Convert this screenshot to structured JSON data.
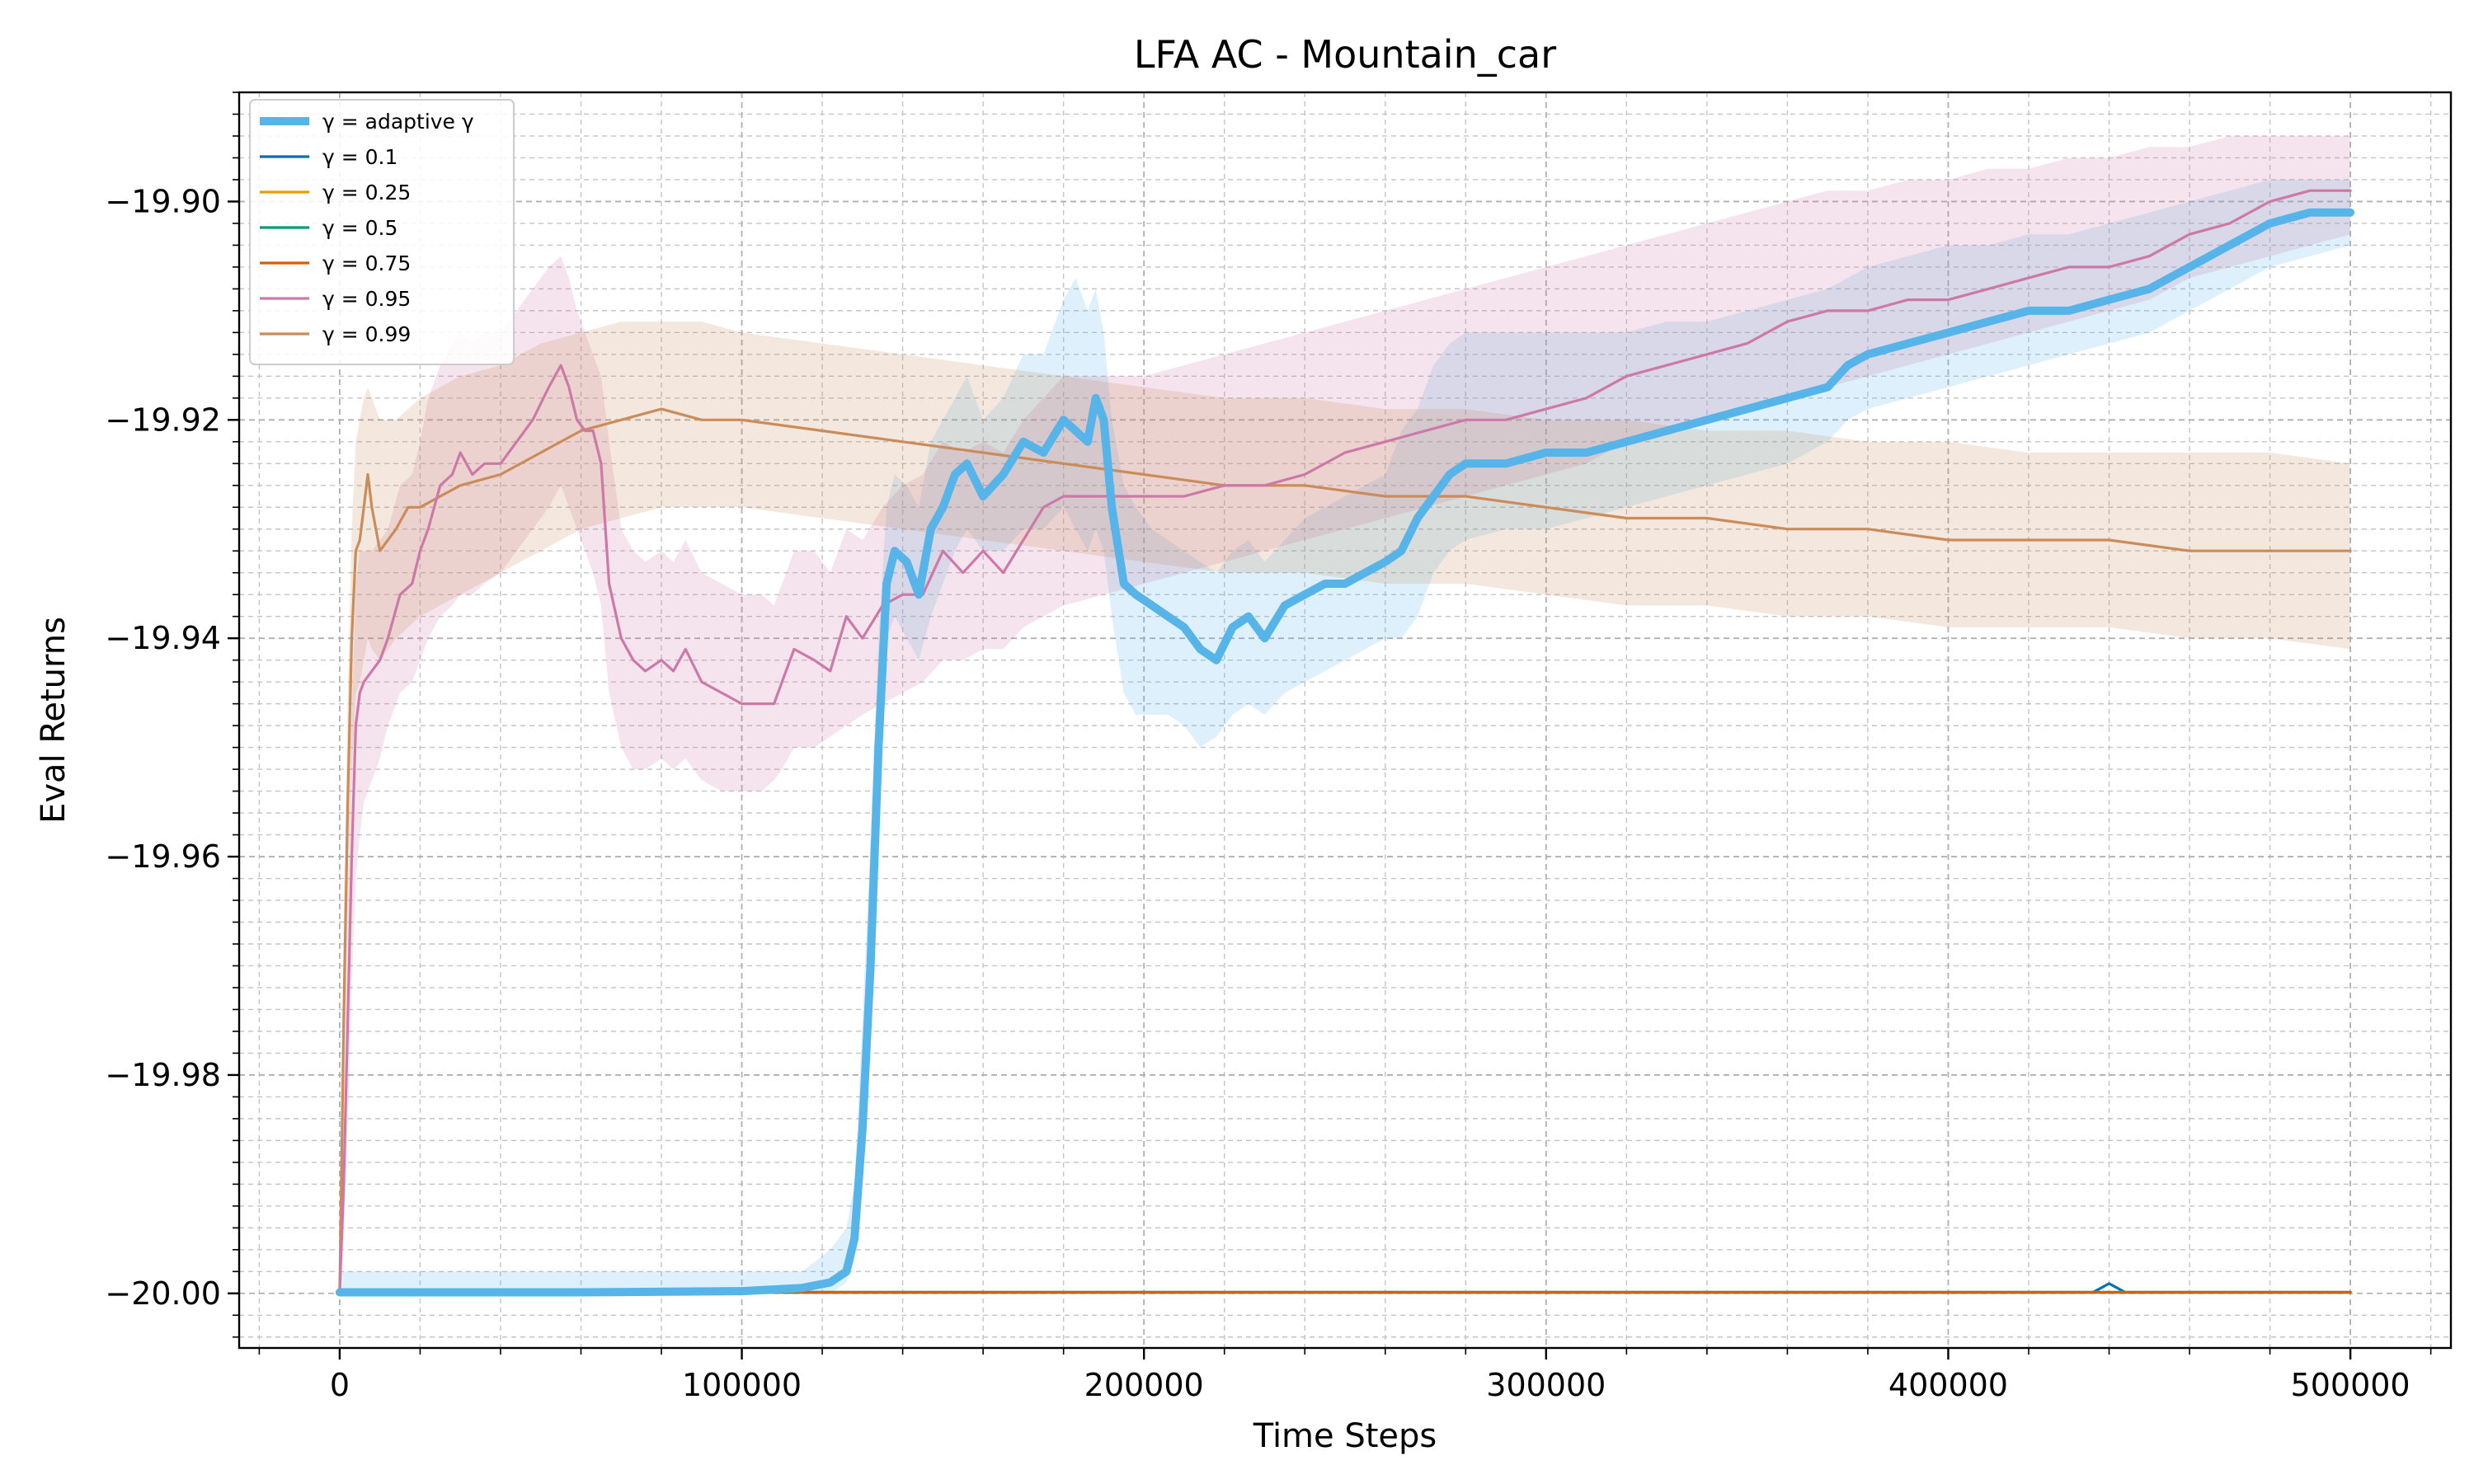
{
  "chart_data": {
    "type": "line",
    "title": "LFA AC - Mountain_car",
    "xlabel": "Time Steps",
    "ylabel": "Eval Returns",
    "xlim": [
      -25000,
      525000
    ],
    "ylim": [
      -20.005,
      -19.89
    ],
    "xticks": [
      0,
      100000,
      200000,
      300000,
      400000,
      500000
    ],
    "xtick_labels": [
      "0",
      "100000",
      "200000",
      "300000",
      "400000",
      "500000"
    ],
    "yticks": [
      -20.0,
      -19.98,
      -19.96,
      -19.94,
      -19.92,
      -19.9
    ],
    "ytick_labels": [
      "−20.00",
      "−19.98",
      "−19.96",
      "−19.94",
      "−19.92",
      "−19.90"
    ],
    "grid": true,
    "legend_position": "top-left",
    "series": [
      {
        "name": "γ = adaptive γ",
        "color": "#56b4e9",
        "linewidth": "thick",
        "x": [
          0,
          20000,
          60000,
          100000,
          115000,
          122000,
          126000,
          128000,
          130000,
          132000,
          134000,
          136000,
          138000,
          141000,
          144000,
          147000,
          150000,
          153000,
          156000,
          160000,
          165000,
          170000,
          175000,
          180000,
          183000,
          186000,
          188000,
          190000,
          192000,
          195000,
          198000,
          202000,
          206000,
          210000,
          214000,
          218000,
          222000,
          226000,
          230000,
          235000,
          240000,
          245000,
          250000,
          255000,
          260000,
          264000,
          268000,
          272000,
          276000,
          280000,
          290000,
          300000,
          310000,
          320000,
          330000,
          340000,
          350000,
          360000,
          370000,
          375000,
          380000,
          390000,
          400000,
          410000,
          420000,
          430000,
          440000,
          450000,
          460000,
          470000,
          480000,
          490000,
          500000
        ],
        "y": [
          -19.9999,
          -19.9999,
          -19.9999,
          -19.9998,
          -19.9995,
          -19.999,
          -19.998,
          -19.995,
          -19.985,
          -19.97,
          -19.95,
          -19.935,
          -19.932,
          -19.933,
          -19.936,
          -19.93,
          -19.928,
          -19.925,
          -19.924,
          -19.927,
          -19.925,
          -19.922,
          -19.923,
          -19.92,
          -19.921,
          -19.922,
          -19.918,
          -19.92,
          -19.928,
          -19.935,
          -19.936,
          -19.937,
          -19.938,
          -19.939,
          -19.941,
          -19.942,
          -19.939,
          -19.938,
          -19.94,
          -19.937,
          -19.936,
          -19.935,
          -19.935,
          -19.934,
          -19.933,
          -19.932,
          -19.929,
          -19.927,
          -19.925,
          -19.924,
          -19.924,
          -19.923,
          -19.923,
          -19.922,
          -19.921,
          -19.92,
          -19.919,
          -19.918,
          -19.917,
          -19.915,
          -19.914,
          -19.913,
          -19.912,
          -19.911,
          -19.91,
          -19.91,
          -19.909,
          -19.908,
          -19.906,
          -19.904,
          -19.902,
          -19.901,
          -19.901
        ],
        "band_lower": [
          -20.0,
          -20.0,
          -20.0,
          -20.0,
          -20.0,
          -20.0,
          -19.999,
          -19.997,
          -19.99,
          -19.975,
          -19.955,
          -19.94,
          -19.938,
          -19.94,
          -19.942,
          -19.938,
          -19.935,
          -19.932,
          -19.93,
          -19.932,
          -19.932,
          -19.93,
          -19.93,
          -19.928,
          -19.93,
          -19.932,
          -19.93,
          -19.932,
          -19.938,
          -19.945,
          -19.947,
          -19.947,
          -19.947,
          -19.948,
          -19.95,
          -19.949,
          -19.947,
          -19.946,
          -19.947,
          -19.945,
          -19.944,
          -19.943,
          -19.942,
          -19.941,
          -19.94,
          -19.94,
          -19.938,
          -19.934,
          -19.932,
          -19.931,
          -19.93,
          -19.93,
          -19.929,
          -19.928,
          -19.927,
          -19.926,
          -19.925,
          -19.924,
          -19.922,
          -19.92,
          -19.919,
          -19.918,
          -19.917,
          -19.916,
          -19.915,
          -19.914,
          -19.913,
          -19.912,
          -19.91,
          -19.908,
          -19.906,
          -19.905,
          -19.904
        ],
        "band_upper": [
          -19.998,
          -19.998,
          -19.998,
          -19.998,
          -19.998,
          -19.996,
          -19.994,
          -19.99,
          -19.975,
          -19.958,
          -19.94,
          -19.928,
          -19.925,
          -19.926,
          -19.928,
          -19.922,
          -19.92,
          -19.918,
          -19.916,
          -19.92,
          -19.918,
          -19.914,
          -19.914,
          -19.909,
          -19.907,
          -19.91,
          -19.908,
          -19.912,
          -19.92,
          -19.926,
          -19.928,
          -19.93,
          -19.931,
          -19.932,
          -19.933,
          -19.934,
          -19.932,
          -19.931,
          -19.933,
          -19.931,
          -19.929,
          -19.928,
          -19.927,
          -19.926,
          -19.925,
          -19.921,
          -19.919,
          -19.915,
          -19.913,
          -19.912,
          -19.912,
          -19.912,
          -19.912,
          -19.912,
          -19.911,
          -19.911,
          -19.91,
          -19.909,
          -19.908,
          -19.907,
          -19.906,
          -19.905,
          -19.904,
          -19.904,
          -19.903,
          -19.903,
          -19.902,
          -19.901,
          -19.9,
          -19.899,
          -19.898,
          -19.898,
          -19.898
        ]
      },
      {
        "name": "γ = 0.1",
        "color": "#0072b2",
        "x": [
          0,
          100000,
          200000,
          300000,
          400000,
          436000,
          438000,
          440000,
          442000,
          444000,
          500000
        ],
        "y": [
          -19.9999,
          -19.9999,
          -19.9999,
          -19.9999,
          -19.9999,
          -19.9999,
          -19.9995,
          -19.9991,
          -19.9995,
          -19.9999,
          -19.9999
        ]
      },
      {
        "name": "γ = 0.25",
        "color": "#e69f00",
        "x": [
          0,
          500000
        ],
        "y": [
          -19.9999,
          -19.9999
        ]
      },
      {
        "name": "γ = 0.5",
        "color": "#009e73",
        "x": [
          0,
          500000
        ],
        "y": [
          -19.9999,
          -19.9999
        ]
      },
      {
        "name": "γ = 0.75",
        "color": "#d55e00",
        "x": [
          0,
          500000
        ],
        "y": [
          -19.9999,
          -19.9999
        ]
      },
      {
        "name": "γ = 0.95",
        "color": "#cc79a7",
        "x": [
          0,
          1000,
          2000,
          3000,
          4000,
          5000,
          6000,
          8000,
          10000,
          12000,
          15000,
          18000,
          20000,
          22000,
          25000,
          28000,
          30000,
          33000,
          36000,
          40000,
          44000,
          48000,
          52000,
          55000,
          57000,
          59000,
          61000,
          63000,
          65000,
          67000,
          70000,
          73000,
          76000,
          80000,
          83000,
          86000,
          90000,
          95000,
          100000,
          105000,
          108000,
          110000,
          113000,
          118000,
          122000,
          126000,
          130000,
          135000,
          140000,
          145000,
          150000,
          155000,
          160000,
          165000,
          170000,
          175000,
          180000,
          190000,
          200000,
          210000,
          220000,
          230000,
          240000,
          250000,
          260000,
          270000,
          280000,
          290000,
          300000,
          310000,
          320000,
          330000,
          340000,
          350000,
          360000,
          370000,
          380000,
          390000,
          400000,
          410000,
          420000,
          430000,
          440000,
          450000,
          460000,
          470000,
          480000,
          490000,
          500000
        ],
        "y": [
          -19.9999,
          -19.99,
          -19.975,
          -19.96,
          -19.948,
          -19.945,
          -19.944,
          -19.943,
          -19.942,
          -19.94,
          -19.936,
          -19.935,
          -19.932,
          -19.93,
          -19.926,
          -19.925,
          -19.923,
          -19.925,
          -19.924,
          -19.924,
          -19.922,
          -19.92,
          -19.917,
          -19.915,
          -19.917,
          -19.92,
          -19.921,
          -19.921,
          -19.924,
          -19.935,
          -19.94,
          -19.942,
          -19.943,
          -19.942,
          -19.943,
          -19.941,
          -19.944,
          -19.945,
          -19.946,
          -19.946,
          -19.946,
          -19.944,
          -19.941,
          -19.942,
          -19.943,
          -19.938,
          -19.94,
          -19.937,
          -19.936,
          -19.936,
          -19.932,
          -19.934,
          -19.932,
          -19.934,
          -19.931,
          -19.928,
          -19.927,
          -19.927,
          -19.927,
          -19.927,
          -19.926,
          -19.926,
          -19.925,
          -19.923,
          -19.922,
          -19.921,
          -19.92,
          -19.92,
          -19.919,
          -19.918,
          -19.916,
          -19.915,
          -19.914,
          -19.913,
          -19.911,
          -19.91,
          -19.91,
          -19.909,
          -19.909,
          -19.908,
          -19.907,
          -19.906,
          -19.906,
          -19.905,
          -19.903,
          -19.902,
          -19.9,
          -19.899,
          -19.899
        ],
        "band_lower": [
          -20.0,
          -19.995,
          -19.985,
          -19.972,
          -19.962,
          -19.958,
          -19.955,
          -19.953,
          -19.951,
          -19.948,
          -19.945,
          -19.944,
          -19.942,
          -19.94,
          -19.938,
          -19.937,
          -19.936,
          -19.936,
          -19.935,
          -19.934,
          -19.932,
          -19.93,
          -19.928,
          -19.926,
          -19.928,
          -19.93,
          -19.932,
          -19.934,
          -19.937,
          -19.945,
          -19.95,
          -19.952,
          -19.952,
          -19.951,
          -19.952,
          -19.951,
          -19.953,
          -19.954,
          -19.954,
          -19.954,
          -19.953,
          -19.952,
          -19.95,
          -19.95,
          -19.949,
          -19.948,
          -19.947,
          -19.946,
          -19.945,
          -19.944,
          -19.942,
          -19.942,
          -19.941,
          -19.941,
          -19.939,
          -19.938,
          -19.937,
          -19.936,
          -19.935,
          -19.934,
          -19.933,
          -19.932,
          -19.931,
          -19.93,
          -19.929,
          -19.928,
          -19.927,
          -19.926,
          -19.925,
          -19.924,
          -19.922,
          -19.921,
          -19.92,
          -19.919,
          -19.918,
          -19.917,
          -19.916,
          -19.915,
          -19.914,
          -19.913,
          -19.912,
          -19.911,
          -19.91,
          -19.909,
          -19.907,
          -19.906,
          -19.905,
          -19.904,
          -19.903
        ],
        "band_upper": [
          -19.998,
          -19.985,
          -19.965,
          -19.948,
          -19.935,
          -19.932,
          -19.932,
          -19.932,
          -19.931,
          -19.93,
          -19.926,
          -19.925,
          -19.922,
          -19.918,
          -19.915,
          -19.913,
          -19.912,
          -19.913,
          -19.912,
          -19.912,
          -19.91,
          -19.908,
          -19.906,
          -19.905,
          -19.907,
          -19.91,
          -19.912,
          -19.914,
          -19.916,
          -19.922,
          -19.93,
          -19.932,
          -19.933,
          -19.932,
          -19.933,
          -19.931,
          -19.934,
          -19.935,
          -19.936,
          -19.936,
          -19.937,
          -19.935,
          -19.932,
          -19.932,
          -19.934,
          -19.93,
          -19.931,
          -19.928,
          -19.926,
          -19.925,
          -19.922,
          -19.923,
          -19.922,
          -19.923,
          -19.92,
          -19.918,
          -19.916,
          -19.916,
          -19.916,
          -19.915,
          -19.914,
          -19.913,
          -19.912,
          -19.911,
          -19.91,
          -19.909,
          -19.908,
          -19.907,
          -19.906,
          -19.905,
          -19.904,
          -19.903,
          -19.902,
          -19.901,
          -19.9,
          -19.899,
          -19.899,
          -19.898,
          -19.898,
          -19.897,
          -19.897,
          -19.896,
          -19.896,
          -19.895,
          -19.895,
          -19.894,
          -19.894,
          -19.894,
          -19.894
        ]
      },
      {
        "name": "γ = 0.99",
        "color": "#c98c5a",
        "x": [
          0,
          1000,
          2000,
          3000,
          4000,
          5000,
          6000,
          7000,
          8000,
          10000,
          12000,
          14000,
          17000,
          20000,
          25000,
          30000,
          40000,
          50000,
          60000,
          70000,
          80000,
          90000,
          100000,
          120000,
          140000,
          160000,
          180000,
          200000,
          220000,
          240000,
          260000,
          280000,
          300000,
          320000,
          340000,
          360000,
          380000,
          400000,
          420000,
          440000,
          460000,
          480000,
          500000
        ],
        "y": [
          -19.9999,
          -19.975,
          -19.955,
          -19.94,
          -19.932,
          -19.931,
          -19.928,
          -19.925,
          -19.928,
          -19.932,
          -19.931,
          -19.93,
          -19.928,
          -19.928,
          -19.927,
          -19.926,
          -19.925,
          -19.923,
          -19.921,
          -19.92,
          -19.919,
          -19.92,
          -19.92,
          -19.921,
          -19.922,
          -19.923,
          -19.924,
          -19.925,
          -19.926,
          -19.926,
          -19.927,
          -19.927,
          -19.928,
          -19.929,
          -19.929,
          -19.93,
          -19.93,
          -19.931,
          -19.931,
          -19.931,
          -19.932,
          -19.932,
          -19.932
        ],
        "band_lower": [
          -20.0,
          -19.985,
          -19.965,
          -19.952,
          -19.945,
          -19.944,
          -19.942,
          -19.94,
          -19.941,
          -19.942,
          -19.941,
          -19.94,
          -19.939,
          -19.938,
          -19.937,
          -19.936,
          -19.934,
          -19.932,
          -19.93,
          -19.929,
          -19.928,
          -19.928,
          -19.928,
          -19.929,
          -19.93,
          -19.931,
          -19.932,
          -19.933,
          -19.934,
          -19.934,
          -19.935,
          -19.935,
          -19.936,
          -19.937,
          -19.937,
          -19.938,
          -19.938,
          -19.939,
          -19.939,
          -19.939,
          -19.94,
          -19.94,
          -19.941
        ],
        "band_upper": [
          -19.998,
          -19.965,
          -19.945,
          -19.93,
          -19.922,
          -19.92,
          -19.918,
          -19.917,
          -19.918,
          -19.92,
          -19.92,
          -19.92,
          -19.919,
          -19.918,
          -19.917,
          -19.916,
          -19.915,
          -19.913,
          -19.912,
          -19.911,
          -19.911,
          -19.911,
          -19.912,
          -19.913,
          -19.914,
          -19.915,
          -19.916,
          -19.917,
          -19.918,
          -19.918,
          -19.919,
          -19.919,
          -19.92,
          -19.92,
          -19.921,
          -19.921,
          -19.922,
          -19.922,
          -19.923,
          -19.923,
          -19.923,
          -19.923,
          -19.924
        ]
      }
    ]
  }
}
